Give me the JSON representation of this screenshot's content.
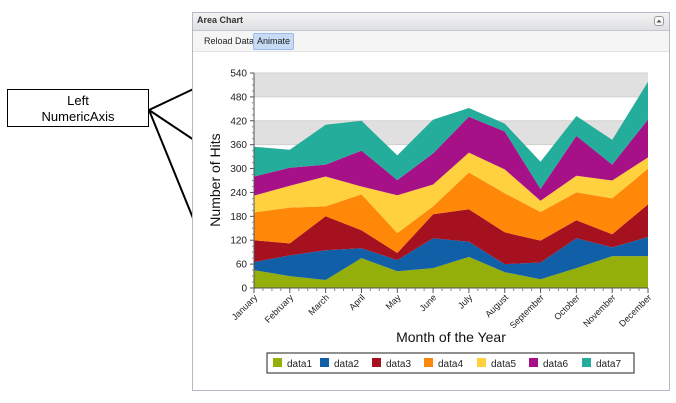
{
  "callout": {
    "line1": "Left",
    "line2": "NumericAxis"
  },
  "panel": {
    "title": "Area Chart"
  },
  "toolbar": {
    "reload_label": "Reload Data",
    "animate_label": "Animate"
  },
  "colors": {
    "series": [
      "#94ae0a",
      "#115fa6",
      "#a61120",
      "#ff8809",
      "#ffd13e",
      "#a61187",
      "#24ad9a"
    ],
    "grid_band": "#e0e0e0",
    "panel_border": "#b5b8c8"
  },
  "chart_data": {
    "type": "area",
    "stacked": true,
    "xlabel": "Month of the Year",
    "ylabel": "Number of Hits",
    "ylim": [
      0,
      540
    ],
    "yticks": [
      "0",
      "60",
      "120",
      "180",
      "240",
      "300",
      "360",
      "420",
      "480",
      "540"
    ],
    "categories": [
      "January",
      "February",
      "March",
      "April",
      "May",
      "June",
      "July",
      "August",
      "September",
      "October",
      "November",
      "December"
    ],
    "series": [
      {
        "name": "data1",
        "values": [
          45,
          30,
          20,
          75,
          42,
          50,
          78,
          40,
          22,
          50,
          80,
          80
        ]
      },
      {
        "name": "data2",
        "values": [
          20,
          52,
          75,
          25,
          28,
          75,
          38,
          20,
          42,
          75,
          22,
          48
        ]
      },
      {
        "name": "data3",
        "values": [
          55,
          30,
          85,
          45,
          18,
          60,
          82,
          80,
          55,
          45,
          33,
          82
        ]
      },
      {
        "name": "data4",
        "values": [
          70,
          90,
          25,
          90,
          50,
          20,
          92,
          98,
          72,
          70,
          90,
          90
        ]
      },
      {
        "name": "data5",
        "values": [
          42,
          55,
          75,
          20,
          95,
          55,
          50,
          60,
          28,
          42,
          45,
          28
        ]
      },
      {
        "name": "data6",
        "values": [
          48,
          45,
          30,
          90,
          38,
          78,
          90,
          95,
          30,
          100,
          40,
          95
        ]
      },
      {
        "name": "data7",
        "values": [
          75,
          45,
          100,
          75,
          62,
          85,
          22,
          20,
          68,
          50,
          62,
          95
        ]
      }
    ],
    "grid_bands": [
      [
        360,
        420
      ],
      [
        480,
        540
      ]
    ],
    "legend_position": "bottom"
  }
}
